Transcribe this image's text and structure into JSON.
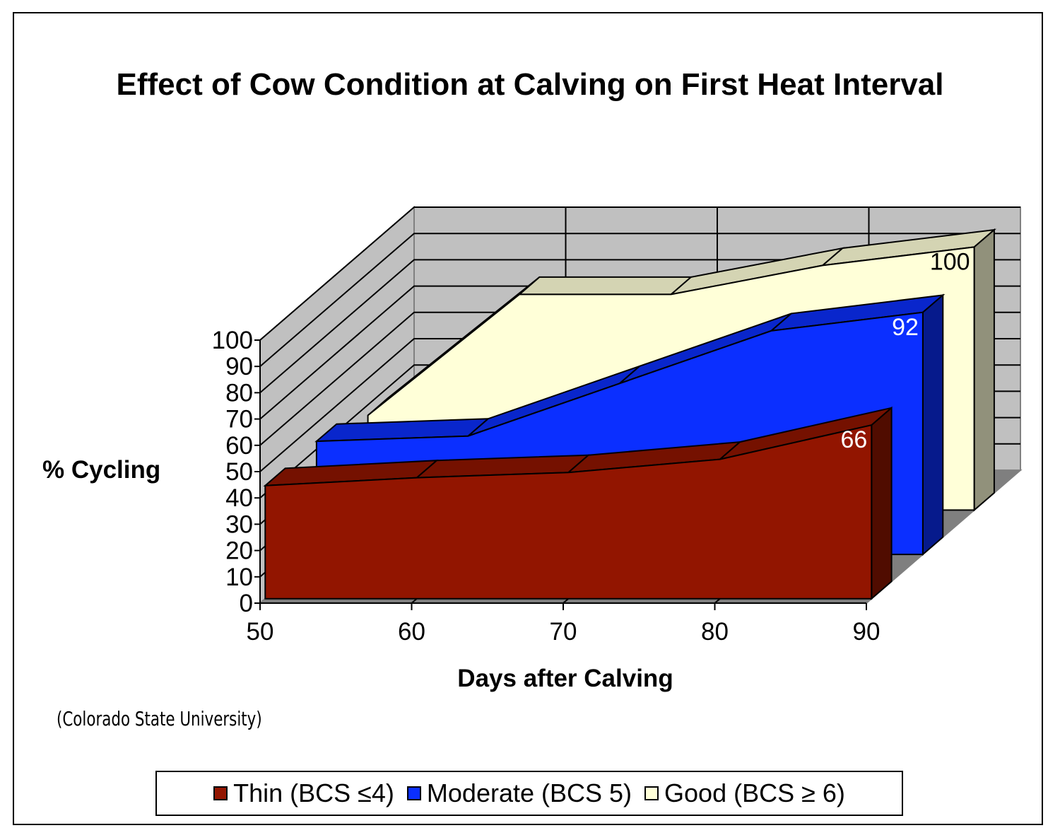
{
  "chart_data": {
    "type": "area",
    "title": "Effect of Cow Condition at Calving on First Heat Interval",
    "xlabel": "Days after Calving",
    "ylabel": "% Cycling",
    "x": [
      50,
      60,
      70,
      80,
      90
    ],
    "xlim": [
      50,
      90
    ],
    "ylim": [
      0,
      100
    ],
    "y_ticks": [
      0,
      10,
      20,
      30,
      40,
      50,
      60,
      70,
      80,
      90,
      100
    ],
    "x_ticks": [
      50,
      60,
      70,
      80,
      90
    ],
    "grid": true,
    "three_d": true,
    "legend_position": "bottom",
    "series": [
      {
        "name": "Thin  (BCS ≤4)",
        "values": [
          43,
          46,
          48,
          53,
          66
        ],
        "color": "#921500",
        "end_label": "66"
      },
      {
        "name": "Moderate  (BCS 5)",
        "values": [
          43,
          45,
          65,
          85,
          92
        ],
        "color": "#0b2fff",
        "end_label": "92"
      },
      {
        "name": "Good  (BCS ≥ 6)",
        "values": [
          36,
          82,
          82,
          93,
          100
        ],
        "color": "#ffffd8",
        "end_label": "100"
      }
    ]
  },
  "source_note": "(Colorado State University)"
}
